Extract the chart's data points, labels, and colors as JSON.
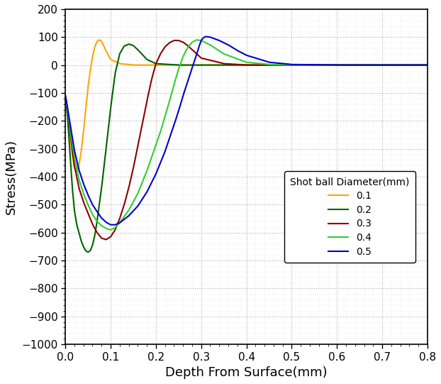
{
  "title": "",
  "xlabel": "Depth From Surface(mm)",
  "ylabel": "Stress(MPa)",
  "xlim": [
    0,
    0.8
  ],
  "ylim": [
    -1000,
    200
  ],
  "yticks": [
    -1000,
    -900,
    -800,
    -700,
    -600,
    -500,
    -400,
    -300,
    -200,
    -100,
    0,
    100,
    200
  ],
  "xticks": [
    0.0,
    0.1,
    0.2,
    0.3,
    0.4,
    0.5,
    0.6,
    0.7,
    0.8
  ],
  "legend_title": "Shot ball Diameter(mm)",
  "series": [
    {
      "label": "0.1",
      "color": "#FFA500",
      "linewidth": 1.5,
      "x": [
        0.0,
        0.002,
        0.005,
        0.008,
        0.012,
        0.016,
        0.02,
        0.025,
        0.03,
        0.035,
        0.04,
        0.045,
        0.05,
        0.055,
        0.06,
        0.065,
        0.07,
        0.075,
        0.08,
        0.09,
        0.1,
        0.12,
        0.15,
        0.2,
        0.3,
        0.5,
        0.8
      ],
      "y": [
        -110,
        -130,
        -160,
        -200,
        -270,
        -330,
        -370,
        -380,
        -360,
        -310,
        -240,
        -160,
        -80,
        -20,
        30,
        65,
        85,
        90,
        85,
        50,
        20,
        5,
        0,
        0,
        0,
        0,
        0
      ]
    },
    {
      "label": "0.2",
      "color": "#006400",
      "linewidth": 1.5,
      "x": [
        0.0,
        0.002,
        0.005,
        0.008,
        0.012,
        0.016,
        0.02,
        0.025,
        0.03,
        0.035,
        0.04,
        0.045,
        0.05,
        0.055,
        0.06,
        0.065,
        0.07,
        0.08,
        0.09,
        0.1,
        0.11,
        0.12,
        0.13,
        0.14,
        0.15,
        0.16,
        0.17,
        0.18,
        0.2,
        0.25,
        0.3,
        0.4,
        0.5,
        0.8
      ],
      "y": [
        -110,
        -140,
        -190,
        -260,
        -360,
        -450,
        -520,
        -570,
        -600,
        -630,
        -650,
        -665,
        -670,
        -665,
        -645,
        -610,
        -560,
        -440,
        -300,
        -155,
        -30,
        40,
        68,
        75,
        70,
        55,
        38,
        20,
        5,
        0,
        0,
        0,
        0,
        0
      ]
    },
    {
      "label": "0.3",
      "color": "#8B0000",
      "linewidth": 1.5,
      "x": [
        0.0,
        0.002,
        0.005,
        0.01,
        0.015,
        0.02,
        0.03,
        0.04,
        0.05,
        0.06,
        0.07,
        0.08,
        0.09,
        0.1,
        0.11,
        0.12,
        0.13,
        0.14,
        0.15,
        0.16,
        0.17,
        0.18,
        0.19,
        0.2,
        0.21,
        0.22,
        0.23,
        0.24,
        0.25,
        0.26,
        0.27,
        0.28,
        0.3,
        0.35,
        0.4,
        0.5,
        0.8
      ],
      "y": [
        -110,
        -130,
        -170,
        -230,
        -300,
        -360,
        -440,
        -490,
        -530,
        -570,
        -600,
        -620,
        -625,
        -615,
        -590,
        -550,
        -500,
        -440,
        -370,
        -290,
        -210,
        -130,
        -55,
        5,
        40,
        65,
        80,
        88,
        88,
        82,
        70,
        55,
        25,
        5,
        0,
        0,
        0
      ]
    },
    {
      "label": "0.4",
      "color": "#32CD32",
      "linewidth": 1.5,
      "x": [
        0.0,
        0.002,
        0.005,
        0.01,
        0.015,
        0.02,
        0.03,
        0.04,
        0.05,
        0.06,
        0.07,
        0.08,
        0.09,
        0.1,
        0.11,
        0.12,
        0.14,
        0.16,
        0.18,
        0.2,
        0.21,
        0.22,
        0.23,
        0.24,
        0.25,
        0.26,
        0.27,
        0.28,
        0.29,
        0.3,
        0.32,
        0.35,
        0.4,
        0.45,
        0.5,
        0.6,
        0.8
      ],
      "y": [
        -110,
        -130,
        -165,
        -220,
        -280,
        -330,
        -410,
        -460,
        -500,
        -535,
        -560,
        -575,
        -585,
        -590,
        -582,
        -565,
        -520,
        -460,
        -380,
        -285,
        -240,
        -185,
        -130,
        -70,
        -15,
        30,
        62,
        82,
        90,
        88,
        72,
        40,
        10,
        2,
        0,
        0,
        0
      ]
    },
    {
      "label": "0.5",
      "color": "#0000CD",
      "linewidth": 1.5,
      "x": [
        0.0,
        0.002,
        0.005,
        0.01,
        0.015,
        0.02,
        0.03,
        0.04,
        0.05,
        0.06,
        0.07,
        0.08,
        0.09,
        0.1,
        0.11,
        0.12,
        0.14,
        0.16,
        0.18,
        0.2,
        0.22,
        0.24,
        0.25,
        0.26,
        0.27,
        0.28,
        0.29,
        0.295,
        0.3,
        0.305,
        0.31,
        0.32,
        0.34,
        0.36,
        0.38,
        0.4,
        0.45,
        0.5,
        0.6,
        0.7,
        0.8
      ],
      "y": [
        -110,
        -125,
        -155,
        -205,
        -255,
        -305,
        -375,
        -425,
        -465,
        -500,
        -525,
        -548,
        -563,
        -572,
        -572,
        -565,
        -540,
        -505,
        -455,
        -390,
        -310,
        -215,
        -165,
        -110,
        -60,
        -10,
        38,
        65,
        88,
        98,
        102,
        100,
        88,
        72,
        52,
        35,
        10,
        2,
        0,
        0,
        0
      ]
    }
  ],
  "grid_major_color": "#999999",
  "grid_minor_color": "#cccccc",
  "grid_alpha": 0.8,
  "grid_linestyle": ":",
  "bg_color": "#ffffff",
  "xlabel_fontsize": 13,
  "ylabel_fontsize": 13,
  "tick_fontsize": 11,
  "legend_fontsize": 10,
  "legend_title_fontsize": 10
}
